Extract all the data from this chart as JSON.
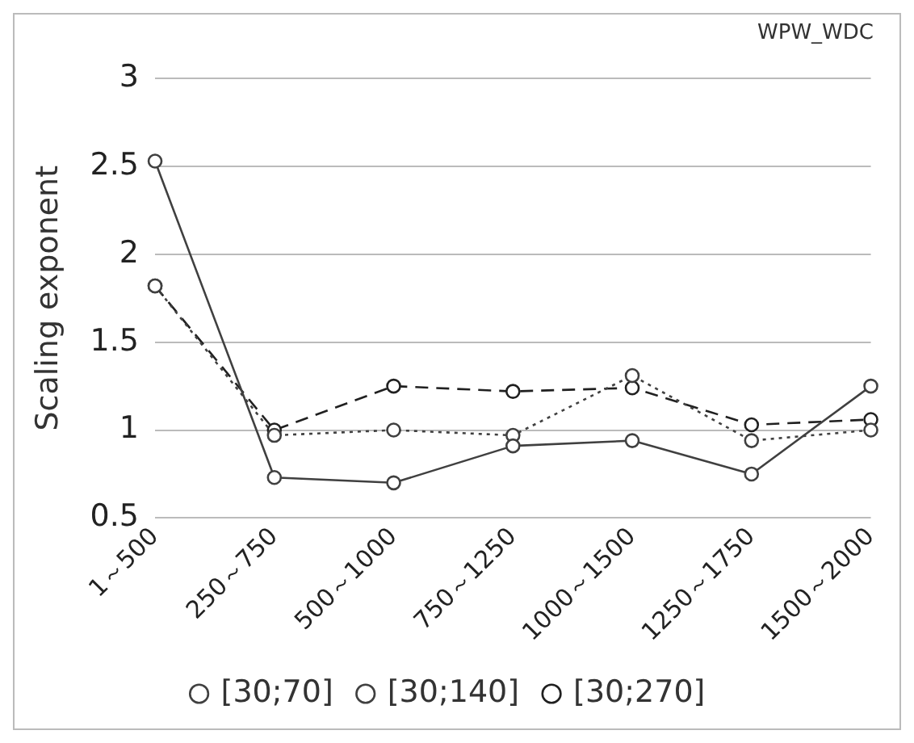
{
  "chart_data": {
    "type": "line",
    "title": "WPW_WDC",
    "ylabel": "Scaling exponent",
    "categories": [
      "1～500",
      "250～750",
      "500～1000",
      "750～1250",
      "1000～1500",
      "1250～1750",
      "1500～2000"
    ],
    "series": [
      {
        "name": "[30;70]",
        "color": "#404040",
        "line_style": "solid",
        "marker": "circle",
        "values": [
          2.53,
          0.73,
          0.7,
          0.91,
          0.94,
          0.75,
          1.25
        ]
      },
      {
        "name": "[30;140]",
        "color": "#404040",
        "line_style": "dotted",
        "marker": "circle",
        "values": [
          1.82,
          0.97,
          1.0,
          0.97,
          1.31,
          0.94,
          1.0
        ]
      },
      {
        "name": "[30;270]",
        "color": "#202020",
        "line_style": "dashed",
        "marker": "circle",
        "values": [
          1.82,
          1.0,
          1.25,
          1.22,
          1.24,
          1.03,
          1.06
        ]
      }
    ],
    "ylim": [
      0.5,
      3
    ],
    "yticks": [
      0.5,
      {
        "value": 1,
        "label": "1"
      },
      1.5,
      {
        "value": 2,
        "label": "2"
      },
      2.5,
      {
        "value": 3,
        "label": "3"
      }
    ],
    "grid": "y",
    "legend": "bottom"
  }
}
